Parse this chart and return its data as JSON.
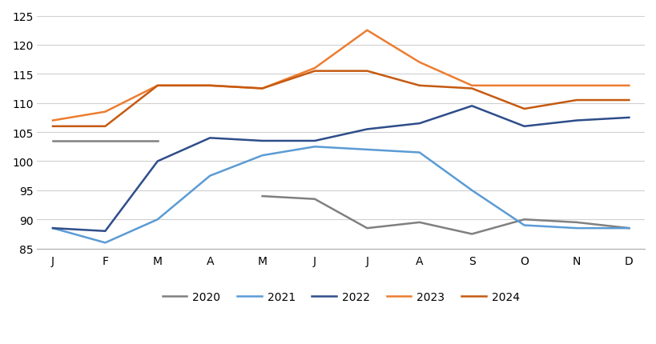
{
  "months": [
    "J",
    "F",
    "M",
    "A",
    "M",
    "J",
    "J",
    "A",
    "S",
    "O",
    "N",
    "D"
  ],
  "y2020": [
    103.5,
    103.5,
    103.5,
    null,
    94.0,
    93.5,
    88.5,
    89.5,
    87.5,
    90.0,
    89.5,
    88.5
  ],
  "y2021": [
    88.5,
    86.0,
    90.0,
    97.5,
    101.0,
    102.5,
    102.0,
    101.5,
    95.0,
    89.0,
    88.5,
    88.5
  ],
  "y2022": [
    88.5,
    88.0,
    100.0,
    104.0,
    103.5,
    103.5,
    105.5,
    106.5,
    109.5,
    106.0,
    107.0,
    107.5
  ],
  "y2023": [
    107.0,
    108.5,
    113.0,
    113.0,
    112.5,
    116.0,
    122.5,
    117.0,
    113.0,
    113.0,
    113.0,
    113.0
  ],
  "y2024": [
    106.0,
    106.0,
    113.0,
    113.0,
    112.5,
    115.5,
    115.5,
    113.0,
    112.5,
    109.0,
    110.5,
    110.5
  ],
  "colors": {
    "2020": "#808080",
    "2021": "#5B9BD5",
    "2022": "#2E4D8A",
    "2023": "#ED7D31",
    "2024": "#C55A11"
  },
  "ylim": [
    85,
    125
  ],
  "yticks": [
    85,
    90,
    95,
    100,
    105,
    110,
    115,
    120,
    125
  ],
  "background_color": "#ffffff",
  "grid_color": "#d0d0d0",
  "linewidth": 1.8
}
